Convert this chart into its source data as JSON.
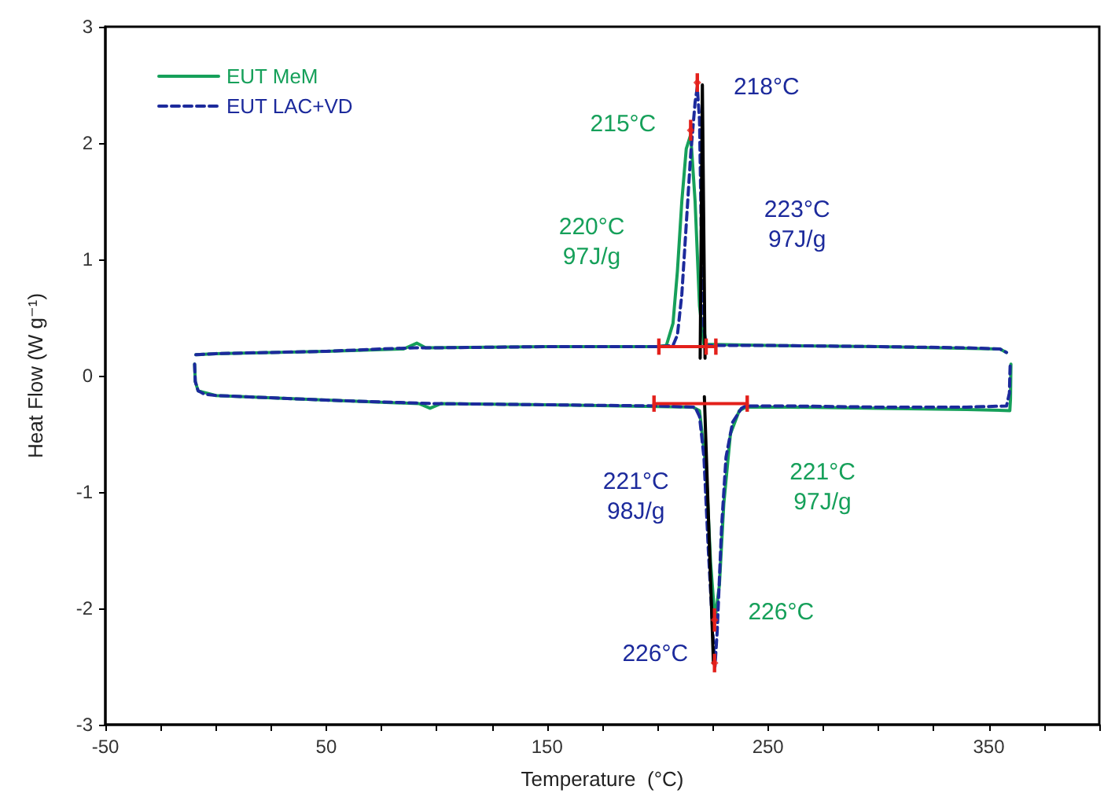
{
  "chart_data": {
    "type": "line",
    "xlabel": "Temperature  (°C)",
    "ylabel": "Heat Flow (W g⁻¹)",
    "xlim": [
      -50,
      400
    ],
    "xticks": [
      -50,
      {
        "value": -25,
        "label": null
      },
      {
        "value": 0,
        "label": null
      },
      {
        "value": 25,
        "label": null
      },
      50,
      {
        "value": 75,
        "label": null
      },
      {
        "value": 100,
        "label": null
      },
      {
        "value": 125,
        "label": null
      },
      150,
      {
        "value": 175,
        "label": null
      },
      {
        "value": 200,
        "label": null
      },
      {
        "value": 225,
        "label": null
      },
      250,
      {
        "value": 275,
        "label": null
      },
      {
        "value": 300,
        "label": null
      },
      {
        "value": 325,
        "label": null
      },
      350,
      {
        "value": 375,
        "label": null
      },
      {
        "value": 400,
        "label": null
      }
    ],
    "ylim": [
      -3,
      3
    ],
    "yticks": [
      -3,
      -2,
      -1,
      0,
      1,
      2,
      3
    ],
    "grid": false,
    "legend": "top left",
    "marker": "none",
    "series": [
      {
        "name": "EUT MeM",
        "color": "#16a05a",
        "line_style": "solid",
        "x": [
          -9,
          0,
          50,
          85,
          91,
          95,
          150,
          200,
          204,
          207,
          209,
          211,
          213,
          215,
          217,
          219,
          221,
          250,
          300,
          355,
          358
        ],
        "values": [
          0.18,
          0.19,
          0.21,
          0.23,
          0.28,
          0.24,
          0.25,
          0.25,
          0.26,
          0.45,
          0.9,
          1.5,
          1.95,
          2.07,
          1.5,
          0.6,
          0.27,
          0.26,
          0.25,
          0.23,
          0.2
        ]
      },
      {
        "name": "EUT LAC+VD",
        "color": "#1c2a9c",
        "line_style": "dashed",
        "x": [
          -9,
          0,
          25,
          50,
          75,
          90,
          100,
          150,
          200,
          207,
          209,
          211,
          213,
          215,
          217,
          218,
          219,
          220,
          221,
          222,
          250,
          300,
          340,
          355,
          358
        ],
        "values": [
          0.18,
          0.19,
          0.2,
          0.21,
          0.23,
          0.24,
          0.24,
          0.25,
          0.25,
          0.26,
          0.35,
          0.7,
          1.3,
          1.9,
          2.35,
          2.48,
          2.2,
          1.0,
          0.4,
          0.26,
          0.26,
          0.25,
          0.24,
          0.23,
          0.2
        ]
      },
      {
        "color": "#16a05a",
        "line_style": "solid",
        "x": [
          -9.6,
          -9.3,
          -8,
          0,
          50,
          92,
          97,
          102,
          150,
          216,
          219,
          222,
          224,
          226,
          228,
          230,
          233,
          237,
          240,
          260,
          300,
          340,
          359.5,
          359.8,
          360
        ],
        "values": [
          0.1,
          -0.05,
          -0.13,
          -0.17,
          -0.21,
          -0.24,
          -0.28,
          -0.24,
          -0.25,
          -0.27,
          -0.3,
          -0.8,
          -1.6,
          -2.1,
          -1.8,
          -1.1,
          -0.5,
          -0.3,
          -0.27,
          -0.27,
          -0.28,
          -0.29,
          -0.3,
          -0.2,
          0.1
        ]
      },
      {
        "color": "#1c2a9c",
        "line_style": "dashed",
        "x": [
          -9.6,
          -9.3,
          -8,
          -5,
          0,
          50,
          100,
          150,
          200,
          217,
          219,
          221,
          223,
          225,
          226,
          227,
          229,
          231,
          234,
          238,
          240,
          260,
          300,
          340,
          358,
          359.3,
          359.5,
          359.7
        ],
        "values": [
          0.1,
          -0.05,
          -0.13,
          -0.16,
          -0.17,
          -0.21,
          -0.24,
          -0.25,
          -0.26,
          -0.27,
          -0.35,
          -0.7,
          -1.5,
          -2.2,
          -2.5,
          -2.2,
          -1.3,
          -0.7,
          -0.4,
          -0.28,
          -0.26,
          -0.26,
          -0.27,
          -0.27,
          -0.26,
          -0.15,
          0,
          0.12
        ]
      },
      {
        "color": "#000000",
        "line_style": "solid",
        "x": [
          219.3,
          220.3,
          221.5
        ],
        "values": [
          0.15,
          2.5,
          0.15
        ]
      },
      {
        "color": "#000000",
        "line_style": "solid",
        "x": [
          221.2,
          225.3
        ],
        "values": [
          -0.18,
          -2.47
        ]
      },
      {
        "color": "#e3201b",
        "line_style": "solid",
        "x": [
          200.6,
          222,
          226.4
        ],
        "values": [
          0.25,
          0.25,
          0.25
        ],
        "errors": [
          0.07,
          0.07,
          0.07
        ]
      },
      {
        "color": "#e3201b",
        "line_style": "solid",
        "x": [
          198.4,
          240.6
        ],
        "values": [
          -0.24,
          -0.24
        ],
        "errors": [
          0.07,
          0.07
        ]
      },
      {
        "type": "scatter",
        "marker": "diamond",
        "color": "#e3201b",
        "x": [
          215,
          218,
          225.8,
          225.8
        ],
        "values": [
          2.11,
          2.52,
          -2.1,
          -2.47
        ],
        "errors": [
          0.09,
          0.08,
          0.1,
          0.08
        ]
      }
    ],
    "annotations": [
      {
        "text": "218°C",
        "x": 218,
        "y": 2.48
      },
      {
        "text": "215°C",
        "x": 215,
        "y": 2.07
      },
      "220°C\n97J/g",
      "223°C\n97J/g",
      "221°C\n98J/g",
      "221°C\n97J/g",
      {
        "text": "226°C",
        "x": 226,
        "y": -2.1
      },
      {
        "text": "226°C",
        "x": 226,
        "y": -2.5
      }
    ]
  }
}
